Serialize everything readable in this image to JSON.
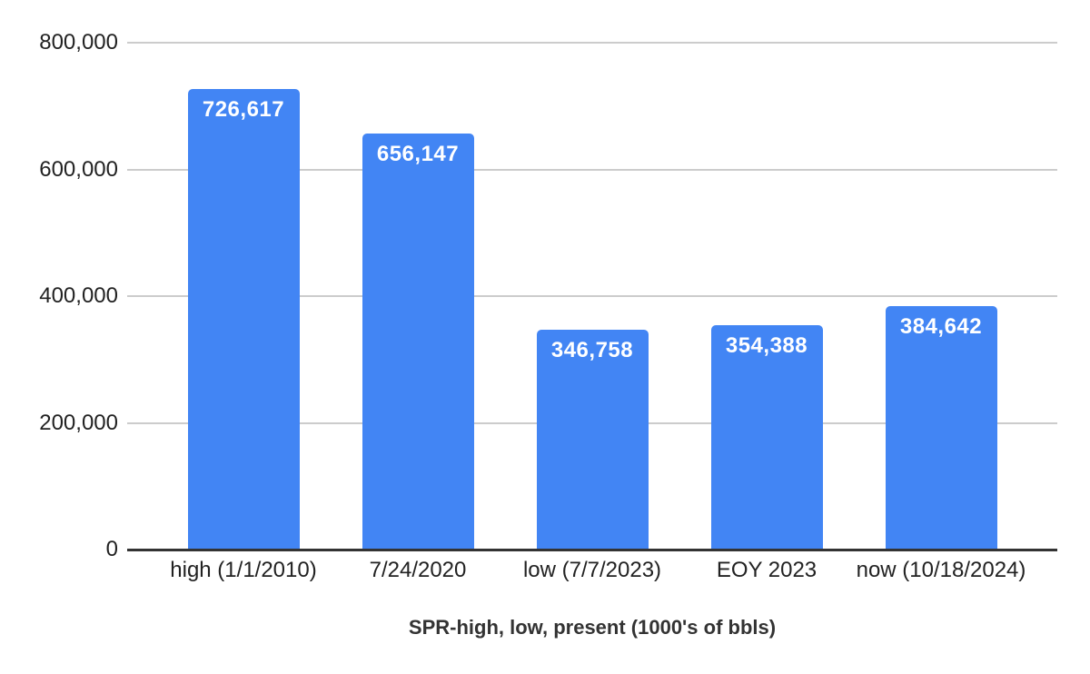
{
  "chart_data": {
    "type": "bar",
    "title": "SPR-high, low, present (1000's of bbls)",
    "xlabel": "",
    "ylabel": "",
    "categories": [
      "high (1/1/2010)",
      "7/24/2020",
      "low (7/7/2023)",
      "EOY 2023",
      "now (10/18/2024)"
    ],
    "values": [
      726617,
      656147,
      346758,
      354388,
      384642
    ],
    "value_labels": [
      "726,617",
      "656,147",
      "346,758",
      "354,388",
      "384,642"
    ],
    "ylim": [
      0,
      800000
    ],
    "yticks": [
      {
        "value": 0,
        "label": "0"
      },
      {
        "value": 200000,
        "label": "200,000"
      },
      {
        "value": 400000,
        "label": "400,000"
      },
      {
        "value": 600000,
        "label": "600,000"
      },
      {
        "value": 800000,
        "label": "800,000"
      }
    ],
    "grid": "horizontal",
    "legend_position": "none",
    "colors": {
      "bar": "#4285F4",
      "bar_label_text": "#ffffff",
      "gridline": "#cccccc",
      "axis_line": "#333333",
      "tick_text": "#222222",
      "title_text": "#333333",
      "background": "#ffffff"
    }
  }
}
